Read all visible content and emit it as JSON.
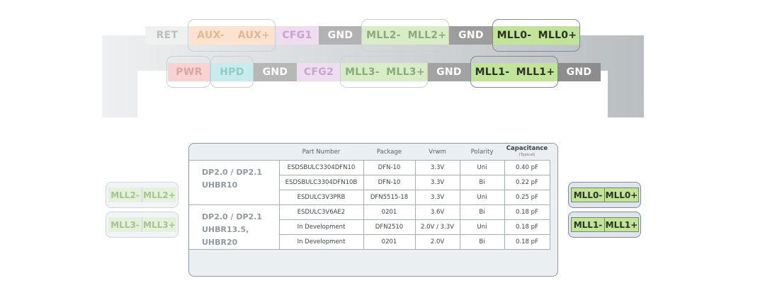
{
  "connector": {
    "top_row": [
      {
        "label": "RET",
        "bg": "#eef1ef",
        "fg": "#b7c0bb"
      },
      {
        "label": "AUX-",
        "bg": "#fbe3cf",
        "fg": "#e0b895"
      },
      {
        "label": "AUX+",
        "bg": "#fbe3cf",
        "fg": "#e0b895"
      },
      {
        "label": "CFG1",
        "bg": "#efdcf1",
        "fg": "#c7a4cd"
      },
      {
        "label": "GND",
        "bg": "#b2b2b2",
        "fg": "#ffffff"
      },
      {
        "label": "MLL2-",
        "bg": "#d8ecc8",
        "fg": "#8ca97e"
      },
      {
        "label": "MLL2+",
        "bg": "#d8ecc8",
        "fg": "#8ca97e"
      },
      {
        "label": "GND",
        "bg": "#9d9d9d",
        "fg": "#ffffff"
      },
      {
        "label": "MLL0-",
        "bg": "#c1e39a",
        "fg": "#2b3226"
      },
      {
        "label": "MLL0+",
        "bg": "#c1e39a",
        "fg": "#2b3226"
      }
    ],
    "bottom_row": [
      {
        "label": "PWR",
        "bg": "#f8d3d3",
        "fg": "#dfa3a3"
      },
      {
        "label": "HPD",
        "bg": "#c8eceb",
        "fg": "#93c9c7"
      },
      {
        "label": "GND",
        "bg": "#b7b7b7",
        "fg": "#ffffff"
      },
      {
        "label": "CFG2",
        "bg": "#efdcf1",
        "fg": "#c7a4cd"
      },
      {
        "label": "MLL3-",
        "bg": "#d8ecc8",
        "fg": "#8ca97e"
      },
      {
        "label": "MLL3+",
        "bg": "#d8ecc8",
        "fg": "#8ca97e"
      },
      {
        "label": "GND",
        "bg": "#a3a3a3",
        "fg": "#ffffff"
      },
      {
        "label": "MLL1-",
        "bg": "#c1e39a",
        "fg": "#2b3226"
      },
      {
        "label": "MLL1+",
        "bg": "#c1e39a",
        "fg": "#2b3226"
      },
      {
        "label": "GND",
        "bg": "#8d8d8d",
        "fg": "#ffffff"
      }
    ]
  },
  "side_pairs": {
    "left": [
      {
        "neg": "MLL2-",
        "pos": "MLL2+"
      },
      {
        "neg": "MLL3-",
        "pos": "MLL3+"
      }
    ],
    "right": [
      {
        "neg": "MLL0-",
        "pos": "MLL0+"
      },
      {
        "neg": "MLL1-",
        "pos": "MLL1+"
      }
    ]
  },
  "table": {
    "headers": [
      "Part Number",
      "Package",
      "Vrwm",
      "Polarity",
      "Capacitance"
    ],
    "capacitance_note": "(Typical)",
    "groups": [
      {
        "line1": "DP2.0 / DP2.1",
        "line2": "UHBR10"
      },
      {
        "line1": "DP2.0 / DP2.1",
        "line2": "UHBR13.5, UHBR20"
      }
    ],
    "rows": [
      [
        "ESDSBULC3304DFN10",
        "DFN-10",
        "3.3V",
        "Uni",
        "0.40 pF"
      ],
      [
        "ESDSBULC3304DFN10B",
        "DFN-10",
        "3.3V",
        "Bi",
        "0.22 pF"
      ],
      [
        "ESDULC3V3PRB",
        "DFN5515-18",
        "3.3V",
        "Uni",
        "0.25 pF"
      ],
      [
        "ESDULC3V6AE2",
        "0201",
        "3.6V",
        "Bi",
        "0.18 pF"
      ],
      [
        "In Development",
        "DFN2510",
        "2.0V / 3.3V",
        "Uni",
        "0.18 pF"
      ],
      [
        "In Development",
        "0201",
        "2.0V",
        "Bi",
        "0.18 pF"
      ]
    ]
  }
}
